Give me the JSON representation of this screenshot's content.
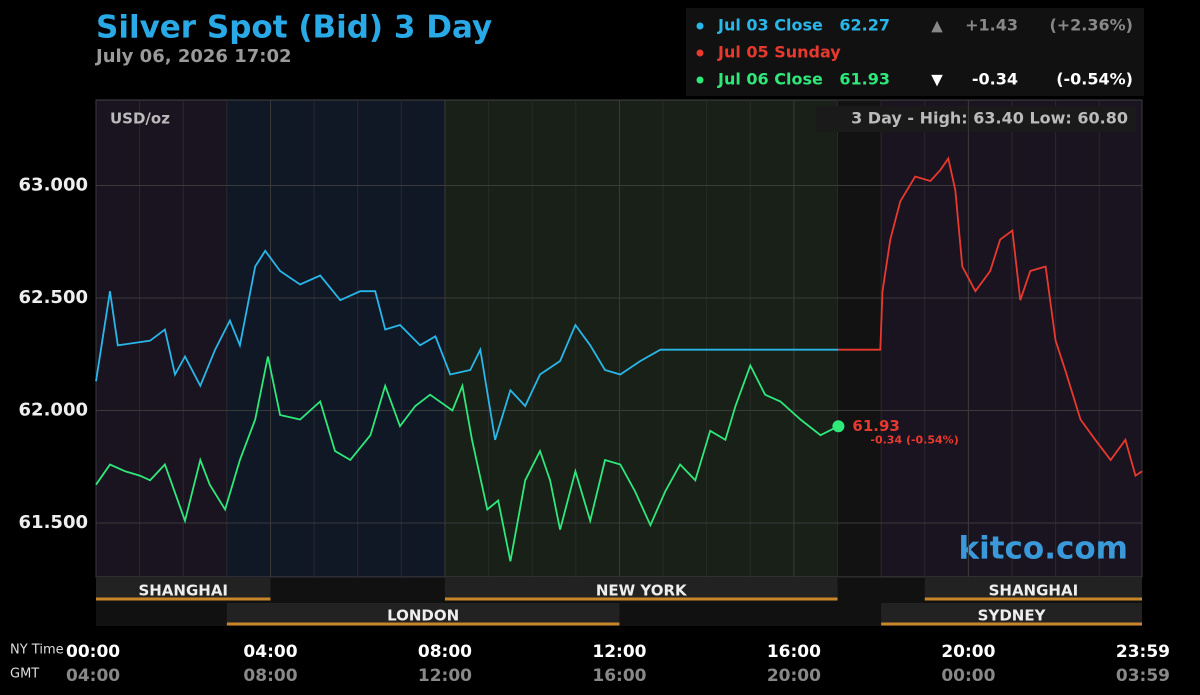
{
  "chart_data": {
    "type": "line",
    "title": "Silver Spot (Bid) 3 Day",
    "subtitle": "July 06, 2026 17:02",
    "unit_label": "USD/oz",
    "range_note": "3 Day - High: 63.40  Low: 60.80",
    "watermark": "kitco.com",
    "x_axis_label": "NY Time",
    "x2_axis_label": "GMT",
    "xlim": [
      0,
      23.98
    ],
    "xticks": [
      {
        "value": 0,
        "label": "00:00"
      },
      {
        "value": 4,
        "label": "04:00"
      },
      {
        "value": 8,
        "label": "08:00"
      },
      {
        "value": 12,
        "label": "12:00"
      },
      {
        "value": 16,
        "label": "16:00"
      },
      {
        "value": 20,
        "label": "20:00"
      },
      {
        "value": 23.98,
        "label": "23:59"
      }
    ],
    "xticks_gmt": [
      "04:00",
      "08:00",
      "12:00",
      "16:00",
      "20:00",
      "00:00",
      "03:59"
    ],
    "ylim": [
      61.26,
      63.38
    ],
    "yticks": [
      {
        "value": 61.5,
        "label": "61.500"
      },
      {
        "value": 62,
        "label": "62.000"
      },
      {
        "value": 62.5,
        "label": "62.500"
      },
      {
        "value": 63,
        "label": "63.000"
      }
    ],
    "grid": true,
    "sessions": [
      "SHANGHAI",
      "LONDON",
      "NEW YORK",
      "SHANGHAI",
      "SYDNEY"
    ],
    "end_label": "61.93",
    "end_change": "-0.34 (-0.54%)",
    "series": [
      {
        "name": "Jul 03 Close",
        "color": "#29b6e8",
        "close": "62.27",
        "arrow": "▲",
        "change": "+1.43",
        "change_pct": "(+2.36%)",
        "x": [
          0,
          0.32,
          0.5,
          1.24,
          1.58,
          1.81,
          2.04,
          2.39,
          2.73,
          3.07,
          3.3,
          3.65,
          3.88,
          4.22,
          4.68,
          5.14,
          5.6,
          6.06,
          6.4,
          6.63,
          6.97,
          7.43,
          7.78,
          8.12,
          8.58,
          8.81,
          9.15,
          9.5,
          9.84,
          10.18,
          10.64,
          10.99,
          11.33,
          11.67,
          12.02,
          12.48,
          12.94,
          17.02
        ],
        "values": [
          62.13,
          62.53,
          62.29,
          62.31,
          62.36,
          62.16,
          62.24,
          62.11,
          62.27,
          62.4,
          62.29,
          62.64,
          62.71,
          62.62,
          62.56,
          62.6,
          62.49,
          62.53,
          62.53,
          62.36,
          62.38,
          62.29,
          62.33,
          62.16,
          62.18,
          62.27,
          61.87,
          62.09,
          62.02,
          62.16,
          62.22,
          62.38,
          62.29,
          62.18,
          62.16,
          62.22,
          62.27,
          62.27
        ]
      },
      {
        "name": "Jul 05 Sunday",
        "color": "#e8392e",
        "x": [
          17.02,
          17.98,
          18.03,
          18.21,
          18.44,
          18.78,
          19.13,
          19.36,
          19.54,
          19.7,
          19.86,
          20.16,
          20.5,
          20.73,
          21.01,
          21.19,
          21.42,
          21.77,
          22.0,
          22.22,
          22.57,
          22.91,
          23.26,
          23.6,
          23.83,
          23.98
        ],
        "values": [
          62.27,
          62.27,
          62.53,
          62.76,
          62.93,
          63.04,
          63.02,
          63.07,
          63.12,
          62.98,
          62.64,
          62.53,
          62.62,
          62.76,
          62.8,
          62.49,
          62.62,
          62.64,
          62.31,
          62.18,
          61.96,
          61.87,
          61.78,
          61.87,
          61.71,
          61.73
        ]
      },
      {
        "name": "Jul 06 Close",
        "color": "#2ee87a",
        "close": "61.93",
        "arrow": "▼",
        "change": "-0.34",
        "change_pct": "(-0.54%)",
        "x": [
          0,
          0.32,
          0.67,
          1.01,
          1.24,
          1.58,
          2.04,
          2.39,
          2.61,
          2.96,
          3.3,
          3.65,
          3.94,
          4.22,
          4.68,
          5.14,
          5.48,
          5.83,
          6.29,
          6.63,
          6.97,
          7.32,
          7.66,
          8.17,
          8.4,
          8.62,
          8.97,
          9.22,
          9.5,
          9.84,
          10.18,
          10.41,
          10.64,
          10.99,
          11.33,
          11.67,
          12.02,
          12.36,
          12.71,
          13.05,
          13.39,
          13.74,
          14.08,
          14.43,
          14.66,
          15.0,
          15.34,
          15.69,
          16.15,
          16.61,
          17.02
        ],
        "values": [
          61.67,
          61.76,
          61.73,
          61.71,
          61.69,
          61.76,
          61.51,
          61.78,
          61.67,
          61.56,
          61.78,
          61.96,
          62.24,
          61.98,
          61.96,
          62.04,
          61.82,
          61.78,
          61.89,
          62.11,
          61.93,
          62.02,
          62.07,
          62.0,
          62.11,
          61.87,
          61.56,
          61.6,
          61.33,
          61.69,
          61.82,
          61.69,
          61.47,
          61.73,
          61.51,
          61.78,
          61.76,
          61.64,
          61.49,
          61.64,
          61.76,
          61.69,
          61.91,
          61.87,
          62.02,
          62.2,
          62.07,
          62.04,
          61.96,
          61.89,
          61.93
        ]
      }
    ]
  }
}
